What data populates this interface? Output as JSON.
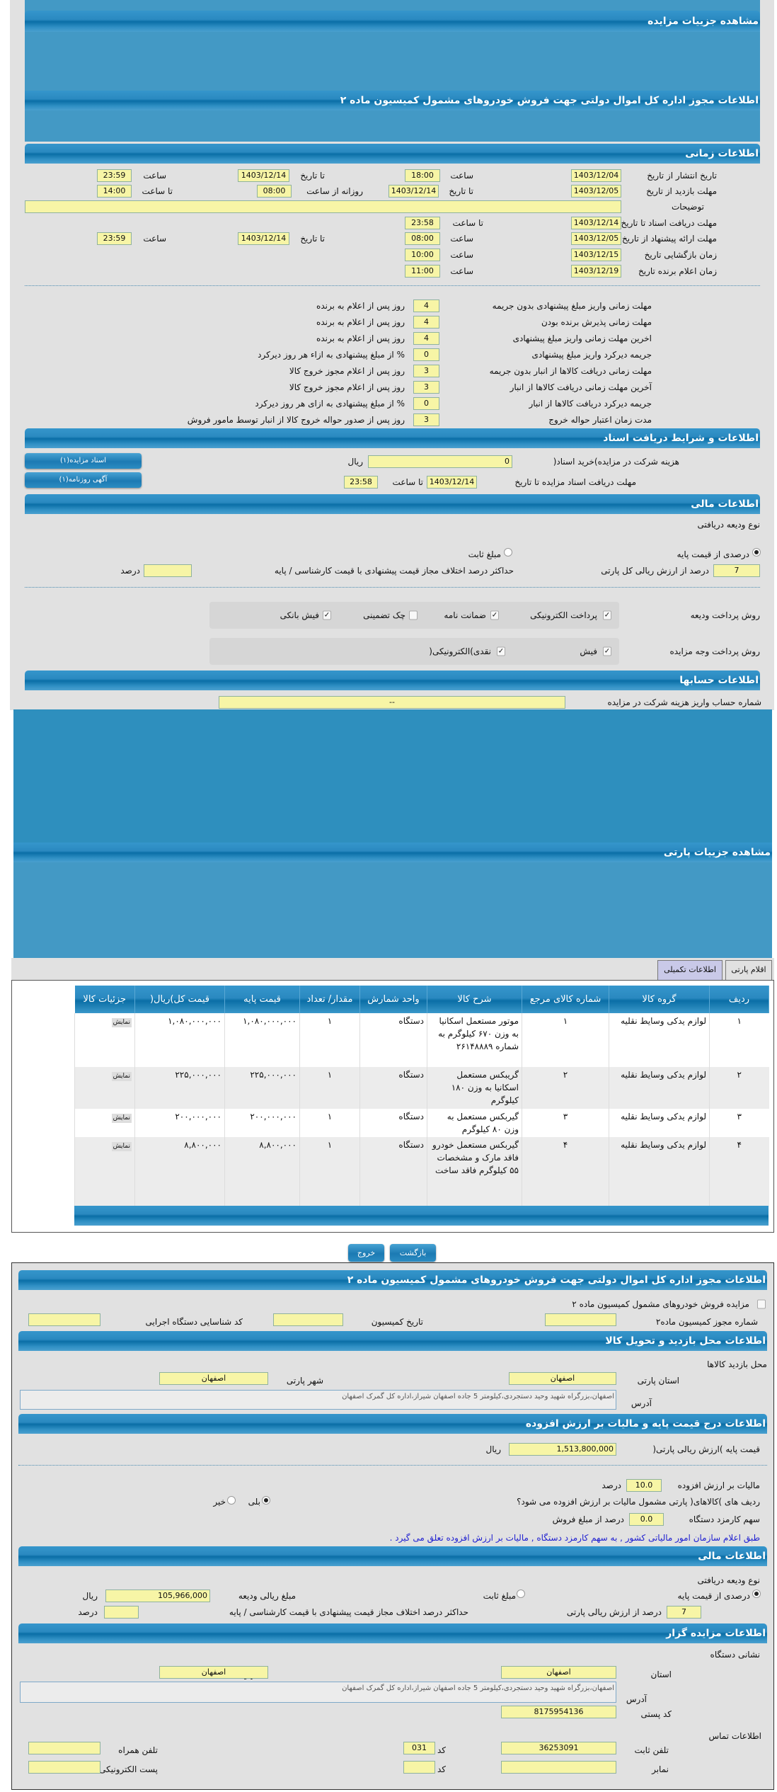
{
  "auction": {
    "title": "مشاهده جزییات مزایده",
    "license_title": "اطلاعات مجوز اداره کل اموال دولتی جهت فروش خودروهای مشمول کمیسیون ماده ۲",
    "timing": {
      "title": "اطلاعات زمانی",
      "publish": {
        "label": "تاریخ انتشار  از تاریخ",
        "from_date": "1403/12/04",
        "time_label": "ساعت",
        "from_time": "18:00",
        "to_label": "تا تاریخ",
        "to_date": "1403/12/14",
        "time_label2": "ساعت",
        "to_time": "23:59"
      },
      "visit": {
        "label": "مهلت بازدید  از تاریخ",
        "from_date": "1403/12/05",
        "to_label": "تا تاریخ",
        "to_date": "1403/12/14",
        "daily_label": "روزانه از ساعت",
        "daily_from": "08:00",
        "to_time_label": "تا ساعت",
        "to_time": "14:00"
      },
      "description_label": "توضیحات",
      "description": "",
      "docs": {
        "label": "مهلت دریافت اسناد  تا تاریخ",
        "date": "1403/12/14",
        "time_label": "تا ساعت",
        "time": "23:58"
      },
      "offer": {
        "label": "مهلت ارائه پیشنهاد  از تاریخ",
        "from_date": "1403/12/05",
        "time_label": "ساعت",
        "from_time": "08:00",
        "to_label": "تا تاریخ",
        "to_date": "1403/12/14",
        "time_label2": "ساعت",
        "to_time": "23:59"
      },
      "opening": {
        "label": "زمان بازگشایی    تاریخ",
        "date": "1403/12/15",
        "time_label": "ساعت",
        "time": "10:00"
      },
      "winner": {
        "label": "زمان اعلام برنده    تاریخ",
        "date": "1403/12/19",
        "time_label": "ساعت",
        "time": "11:00"
      }
    },
    "deadlines": [
      {
        "label": "مهلت زمانی واریز مبلغ پیشنهادی بدون جریمه",
        "value": "4",
        "suffix": "روز پس از اعلام به برنده"
      },
      {
        "label": "مهلت زمانی پذیرش برنده بودن",
        "value": "4",
        "suffix": "روز پس از اعلام به برنده"
      },
      {
        "label": "اخرین مهلت زمانی واریز مبلغ پیشنهادی",
        "value": "4",
        "suffix": "روز پس از اعلام به برنده"
      },
      {
        "label": "جریمه دیرکرد واریز مبلغ پیشنهادی",
        "value": "0",
        "suffix": "% از مبلغ پیشنهادی به ازاء هر روز دیرکرد"
      },
      {
        "label": "مهلت زمانی دریافت کالاها از انبار بدون جریمه",
        "value": "3",
        "suffix": "روز پس از اعلام مجوز خروج کالا"
      },
      {
        "label": "آخرین مهلت زمانی دریافت کالاها از انبار",
        "value": "3",
        "suffix": "روز پس از اعلام مجوز خروج کالا"
      },
      {
        "label": "جریمه دیرکرد دریافت کالاها از انبار",
        "value": "0",
        "suffix": "% از مبلغ پیشنهادی به ازای هر روز دیرکرد"
      },
      {
        "label": "مدت زمان اعتبار حواله خروج",
        "value": "3",
        "suffix": "روز پس از صدور حواله خروج کالا از انبار توسط مامور فروش"
      }
    ],
    "documents": {
      "title": "اطلاعات و شرایط دریافت اسناد",
      "fee_label": "هزینه شرکت در مزایده)خرید اسناد(",
      "fee": "0",
      "fee_unit": "ریال",
      "deadline_label": "مهلت دریافت اسناد مزایده تا تاریخ",
      "deadline_date": "1403/12/14",
      "deadline_time_label": "تا ساعت",
      "deadline_time": "23:58",
      "btn_docs": "اسناد مزایده(۱)",
      "btn_ad": "آگهی روزنامه(۱)"
    },
    "finance": {
      "title": "اطلاعات مالی",
      "deposit_type_label": "نوع ودیعه دریافتی",
      "opt_percent": "درصدی از قیمت پایه",
      "opt_fixed": "مبلغ ثابت",
      "selected": "percent",
      "percent": "7",
      "percent_suffix": "درصد از ارزش ریالی کل پارتی",
      "max_diff_label": "حداکثر درصد اختلاف مجاز قیمت پیشنهادی با قیمت کارشناسی / پایه",
      "max_diff": "",
      "max_diff_unit": "درصد",
      "deposit_method_label": "روش پرداخت ودیعه",
      "deposit_methods": [
        {
          "label": "پرداخت الکترونیکی",
          "checked": true
        },
        {
          "label": "ضمانت نامه",
          "checked": true
        },
        {
          "label": "چک تضمینی",
          "checked": false
        },
        {
          "label": "فیش بانکی",
          "checked": true
        }
      ],
      "payment_method_label": "روش پرداخت وجه مزایده",
      "payment_methods": [
        {
          "label": "فیش",
          "checked": true
        },
        {
          "label": "نقدی)الکترونیکی(",
          "checked": true
        }
      ]
    },
    "accounts": {
      "title": "اطلاعات حسابها",
      "label": "شماره حساب واریز هزینه شرکت در مزایده",
      "value": "--"
    }
  },
  "lot": {
    "title": "مشاهده جزییات پارتی",
    "tabs": [
      {
        "label": "اقلام پارتی"
      },
      {
        "label": "اطلاعات تکمیلی"
      }
    ],
    "columns": [
      "ردیف",
      "گروه کالا",
      "شماره کالای مرجع",
      "شرح کالا",
      "واحد شمارش",
      "مقدار/ تعداد",
      "قیمت پایه",
      "قیمت کل)ریال(",
      "جزئیات کالا"
    ],
    "rows": [
      [
        "۱",
        "لوازم یدکی وسایط نقلیه",
        "۱",
        "موتور مستعمل اسکانیا به وزن ۶۷۰ کیلوگرم به شماره ۲۶۱۴۸۸۸۹",
        "دستگاه",
        "۱",
        "۱,۰۸۰,۰۰۰,۰۰۰",
        "۱,۰۸۰,۰۰۰,۰۰۰",
        "نمایش"
      ],
      [
        "۲",
        "لوازم یدکی وسایط نقلیه",
        "۲",
        "گریبکس مستعمل اسکانیا به وزن ۱۸۰ کیلوگرم",
        "دستگاه",
        "۱",
        "۲۲۵,۰۰۰,۰۰۰",
        "۲۲۵,۰۰۰,۰۰۰",
        "نمایش"
      ],
      [
        "۳",
        "لوازم یدکی وسایط نقلیه",
        "۳",
        "گیربکس مستعمل به وزن ۸۰ کیلوگرم",
        "دستگاه",
        "۱",
        "۲۰۰,۰۰۰,۰۰۰",
        "۲۰۰,۰۰۰,۰۰۰",
        "نمایش"
      ],
      [
        "۴",
        "لوازم یدکی وسایط نقلیه",
        "۴",
        "گیربکس مستعمل خودرو فاقد مارک و مشخصات ۵۵ کیلوگرم فاقد ساخت",
        "دستگاه",
        "۱",
        "۸,۸۰۰,۰۰۰",
        "۸,۸۰۰,۰۰۰",
        "نمایش"
      ]
    ],
    "btn_back": "بازگشت",
    "btn_exit": "خروج"
  },
  "details": {
    "license": {
      "title": "اطلاعات مجوز اداره کل اموال دولتی جهت فروش خودروهای مشمول کمیسیون ماده ۲",
      "check_label": "مزایده فروش خودروهای مشمول کمیسیون ماده ۲",
      "checked": false,
      "no_label": "شماره مجوز کمیسیون ماده۲",
      "no": "",
      "date_label": "تاریخ کمیسیون",
      "date": "",
      "org_label": "کد شناسایی دستگاه اجرایی",
      "org": ""
    },
    "visit": {
      "title": "اطلاعات محل بازدید و تحویل کالا",
      "place_label": "محل بازدید کالاها",
      "province_label": "استان پارتی",
      "province": "اصفهان",
      "city_label": "شهر پارتی",
      "city": "اصفهان",
      "address_label": "آدرس",
      "address": "اصفهان،بزرگراه شهید وحید دستجردی،کیلومتر 5 جاده اصفهان شیراز،اداره کل گمرک اصفهان"
    },
    "price": {
      "title": "اطلاعات درج قیمت پایه و مالیات بر ارزش افزوده",
      "base_label": "قیمت پایه )ارزش ریالی پارتی(",
      "base": "1,513,800,000",
      "base_unit": "ریال",
      "vat_label": "مالیات بر ارزش افزوده",
      "vat": "10.0",
      "vat_unit": "درصد",
      "q_label": "ردیف های )کالاهای( پارتی مشمول مالیات بر ارزش افزوده می شود؟",
      "yes": "بلی",
      "no": "خیر",
      "selected": "yes",
      "fee_label": "سهم کارمزد دستگاه",
      "fee": "0.0",
      "fee_suffix": "درصد از مبلغ فروش",
      "note": "طبق اعلام سازمان امور مالیاتی کشور , به سهم کارمزد دستگاه , مالیات بر ارزش افزوده تعلق می گیرد ."
    },
    "finance": {
      "title": "اطلاعات مالی",
      "deposit_type_label": "نوع ودیعه دریافتی",
      "opt_percent": "درصدی از قیمت پایه",
      "opt_fixed": "مبلغ ثابت",
      "selected": "percent",
      "amount_label": "مبلغ ریالی ودیعه",
      "amount": "105,966,000",
      "amount_unit": "ریال",
      "percent": "7",
      "percent_suffix": "درصد از ارزش ریالی پارتی",
      "max_diff_label": "حداکثر درصد اختلاف مجاز قیمت پیشنهادی با قیمت کارشناسی / پایه",
      "max_diff": "",
      "max_diff_unit": "درصد"
    },
    "auctioneer": {
      "title": "اطلاعات مزایده گزار",
      "addr_title": "نشانی دستگاه",
      "province_label": "استان",
      "province": "اصفهان",
      "city_label": "شهر",
      "city": "اصفهان",
      "address_label": "آدرس",
      "address": "اصفهان،بزرگراه شهید وحید دستجردی،کیلومتر 5 جاده اصفهان شیراز،اداره کل گمرک اصفهان",
      "postal_label": "کد پستی",
      "postal": "8175954136",
      "contact_title": "اطلاعات تماس",
      "phone_label": "تلفن ثابت",
      "phone": "36253091",
      "code_label": "کد",
      "phone_code": "031",
      "mobile_label": "تلفن همراه",
      "mobile": "",
      "fax_label": "نمابر",
      "fax": "",
      "fax_code": "",
      "email_label": "پست الکترونیکی",
      "email": ""
    }
  }
}
